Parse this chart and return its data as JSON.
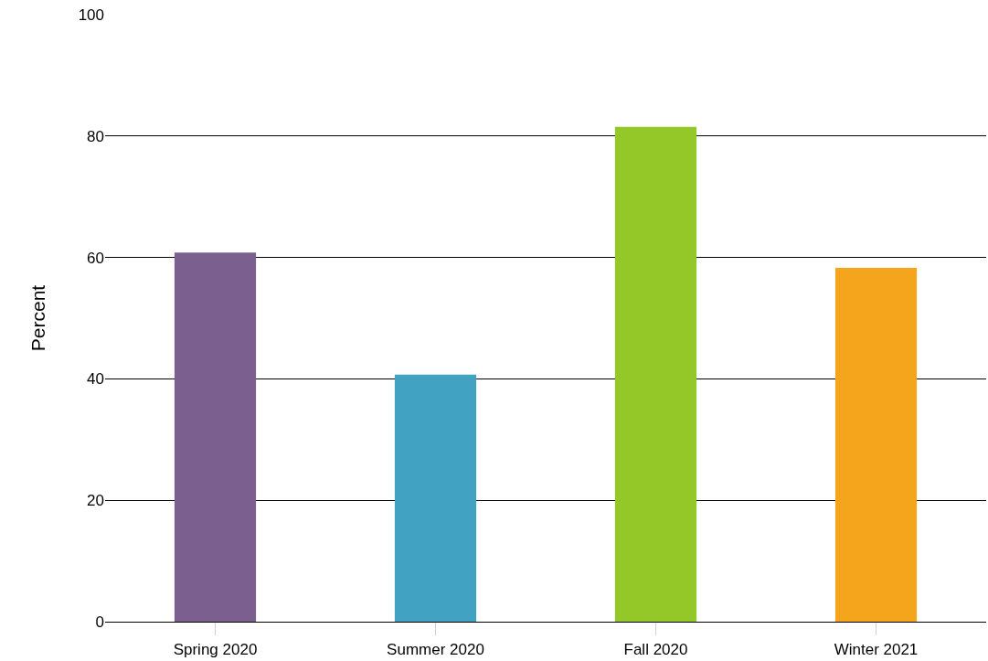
{
  "chart_data": {
    "type": "bar",
    "ylabel": "Percent",
    "categories": [
      "Spring 2020",
      "Summer 2020",
      "Fall 2020",
      "Winter 2021"
    ],
    "values": [
      60.8,
      40.7,
      81.5,
      58.3
    ],
    "colors": [
      "#7b5f8e",
      "#41a2c2",
      "#94c828",
      "#f5a51b"
    ],
    "ylim": [
      0,
      100
    ],
    "yticks": [
      0,
      20,
      40,
      60,
      80,
      100
    ],
    "grid": "y"
  }
}
